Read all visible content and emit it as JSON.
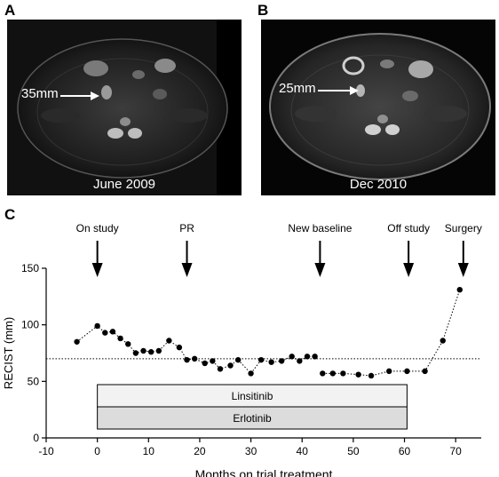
{
  "panel_a": {
    "letter": "A",
    "measurement": "35mm",
    "date": "June 2009"
  },
  "panel_b": {
    "letter": "B",
    "measurement": "25mm",
    "date": "Dec 2010"
  },
  "panel_c": {
    "letter": "C"
  },
  "colors": {
    "dots": "#000000",
    "bar_linsitinib": "#f2f2f2",
    "bar_erlotinib": "#dcdcdc",
    "mri_bg": "#000000"
  },
  "chart_data": {
    "type": "scatter",
    "xlabel": "Months on trial treatment",
    "ylabel": "RECIST (mm)",
    "xlim": [
      -10,
      75
    ],
    "ylim": [
      0,
      150
    ],
    "xticks": [
      -10,
      0,
      10,
      20,
      30,
      40,
      50,
      60,
      70
    ],
    "yticks": [
      0,
      50,
      100,
      150
    ],
    "reference_line_y": 70,
    "series": [
      {
        "points": [
          [
            -4,
            85
          ],
          [
            0,
            99
          ],
          [
            1.5,
            93
          ],
          [
            3,
            94
          ],
          [
            4.5,
            88
          ],
          [
            6,
            83
          ],
          [
            7.5,
            75
          ],
          [
            9,
            77
          ],
          [
            10.5,
            76
          ],
          [
            12,
            77
          ],
          [
            14,
            86
          ],
          [
            16,
            80
          ],
          [
            17.5,
            69
          ],
          [
            19,
            70
          ],
          [
            21,
            66
          ],
          [
            22.5,
            68
          ],
          [
            24,
            61
          ],
          [
            26,
            64
          ],
          [
            27.5,
            69
          ],
          [
            30,
            57
          ],
          [
            32,
            69
          ],
          [
            34,
            67
          ],
          [
            36,
            68
          ],
          [
            38,
            72
          ],
          [
            39.5,
            68
          ],
          [
            41,
            72
          ],
          [
            42.5,
            72
          ]
        ]
      },
      {
        "points": [
          [
            44,
            57
          ],
          [
            46,
            57
          ],
          [
            48,
            57
          ],
          [
            51,
            56
          ],
          [
            53.5,
            55
          ],
          [
            57,
            59
          ],
          [
            60.5,
            59
          ],
          [
            64,
            59
          ],
          [
            67.5,
            86
          ],
          [
            70.8,
            131
          ]
        ]
      }
    ],
    "events": [
      {
        "label": "On study",
        "x": 0
      },
      {
        "label": "PR",
        "x": 17.5
      },
      {
        "label": "New baseline",
        "x": 43.5
      },
      {
        "label": "Off study",
        "x": 60.8
      },
      {
        "label": "Surgery",
        "x": 71.5
      }
    ],
    "treatment_bars": [
      {
        "label": "Linsitinib",
        "start": 0,
        "end": 60.5
      },
      {
        "label": "Erlotinib",
        "start": 0,
        "end": 60.5
      }
    ]
  }
}
